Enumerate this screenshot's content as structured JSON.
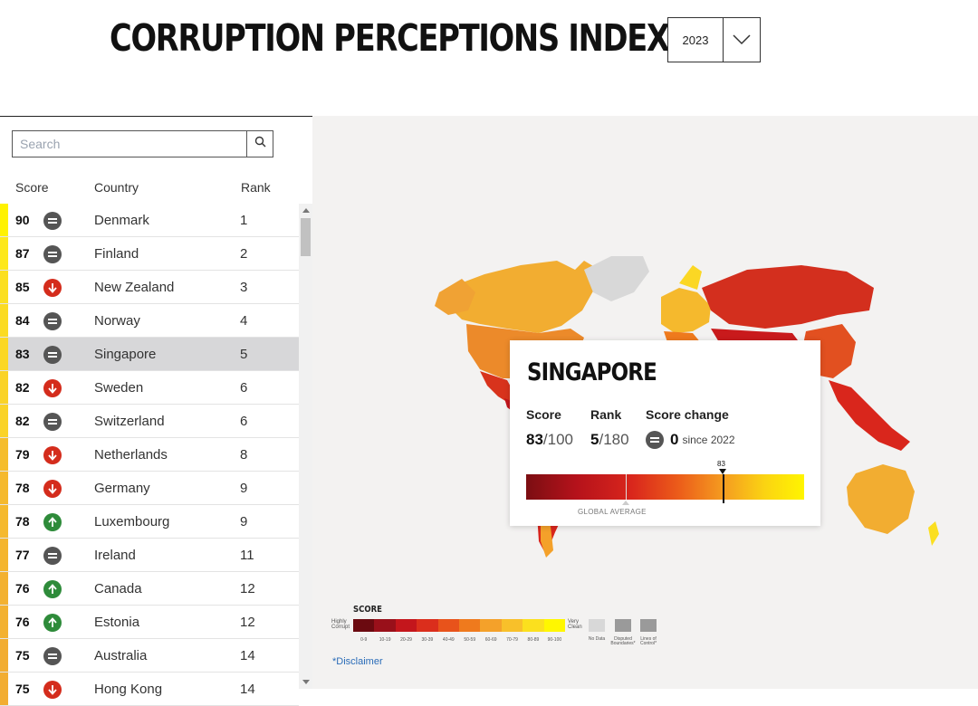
{
  "header": {
    "title": "CORRUPTION PERCEPTIONS INDEX",
    "year": "2023"
  },
  "search": {
    "placeholder": "Search"
  },
  "columns": {
    "score": "Score",
    "country": "Country",
    "rank": "Rank"
  },
  "rows": [
    {
      "score": "90",
      "trend": "same",
      "country": "Denmark",
      "rank": "1",
      "color": "#fff200"
    },
    {
      "score": "87",
      "trend": "same",
      "country": "Finland",
      "rank": "2",
      "color": "#fde81a"
    },
    {
      "score": "85",
      "trend": "down",
      "country": "New Zealand",
      "rank": "3",
      "color": "#fbdf20"
    },
    {
      "score": "84",
      "trend": "same",
      "country": "Norway",
      "rank": "4",
      "color": "#fbdb22"
    },
    {
      "score": "83",
      "trend": "same",
      "country": "Singapore",
      "rank": "5",
      "color": "#fbd724",
      "selected": true
    },
    {
      "score": "82",
      "trend": "down",
      "country": "Sweden",
      "rank": "6",
      "color": "#fad326"
    },
    {
      "score": "82",
      "trend": "same",
      "country": "Switzerland",
      "rank": "6",
      "color": "#fad326"
    },
    {
      "score": "79",
      "trend": "down",
      "country": "Netherlands",
      "rank": "8",
      "color": "#f5bd2c"
    },
    {
      "score": "78",
      "trend": "down",
      "country": "Germany",
      "rank": "9",
      "color": "#f5b92d"
    },
    {
      "score": "78",
      "trend": "up",
      "country": "Luxembourg",
      "rank": "9",
      "color": "#f5b92d"
    },
    {
      "score": "77",
      "trend": "same",
      "country": "Ireland",
      "rank": "11",
      "color": "#f4b52e"
    },
    {
      "score": "76",
      "trend": "up",
      "country": "Canada",
      "rank": "12",
      "color": "#f3b130"
    },
    {
      "score": "76",
      "trend": "up",
      "country": "Estonia",
      "rank": "12",
      "color": "#f3b130"
    },
    {
      "score": "75",
      "trend": "same",
      "country": "Australia",
      "rank": "14",
      "color": "#f2ad31"
    },
    {
      "score": "75",
      "trend": "down",
      "country": "Hong Kong",
      "rank": "14",
      "color": "#f2ad31"
    }
  ],
  "trend_colors": {
    "same": "#555555",
    "down": "#d42c1c",
    "up": "#2e8b3a"
  },
  "popup": {
    "country": "SINGAPORE",
    "score_label": "Score",
    "rank_label": "Rank",
    "change_label": "Score change",
    "score": "83",
    "score_total": "/100",
    "rank": "5",
    "rank_total": "/180",
    "change": "0",
    "since": "since 2022",
    "marker_value": "83",
    "global_average_label": "GLOBAL AVERAGE"
  },
  "legend": {
    "title": "SCORE",
    "left_label": "Highly Corrupt",
    "right_label": "Very Clean",
    "ranges": [
      "0-9",
      "10-19",
      "20-29",
      "30-39",
      "40-49",
      "50-59",
      "60-69",
      "70-79",
      "80-89",
      "90-100"
    ],
    "colors": [
      "#6b0a10",
      "#99101a",
      "#c4161c",
      "#db2e1c",
      "#e8531b",
      "#ef7a1d",
      "#f4a12a",
      "#f8c02a",
      "#fbe01e",
      "#fff700"
    ],
    "no_data": "No Data",
    "disputed": "Disputed Boundaries*",
    "lines": "Lines of Control*",
    "disclaimer": "*Disclaimer"
  }
}
